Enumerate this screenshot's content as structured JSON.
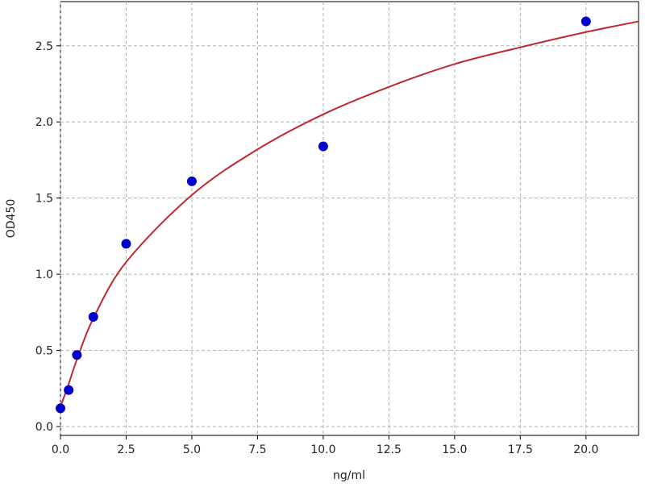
{
  "chart_data": {
    "type": "scatter",
    "title": "",
    "xlabel": "ng/ml",
    "ylabel": "OD450",
    "xlim": [
      0,
      22
    ],
    "ylim": [
      -0.058,
      2.79
    ],
    "xticks": [
      "0.0",
      "2.5",
      "5.0",
      "7.5",
      "10.0",
      "12.5",
      "15.0",
      "17.5",
      "20.0"
    ],
    "xtick_values": [
      0,
      2.5,
      5,
      7.5,
      10,
      12.5,
      15,
      17.5,
      20
    ],
    "yticks": [
      "0.0",
      "0.5",
      "1.0",
      "1.5",
      "2.0",
      "2.5"
    ],
    "ytick_values": [
      0,
      0.5,
      1,
      1.5,
      2,
      2.5
    ],
    "grid": true,
    "points": {
      "color": "#0000cc",
      "x": [
        0,
        0.3125,
        0.625,
        1.25,
        2.5,
        5,
        10,
        20
      ],
      "y": [
        0.12,
        0.24,
        0.47,
        0.72,
        1.2,
        1.61,
        1.84,
        2.66
      ]
    },
    "fit_curve": {
      "color": "#c0282d",
      "x": [
        0,
        0.3125,
        0.625,
        1.25,
        2.5,
        5,
        7.5,
        10,
        12.5,
        15,
        17.5,
        20,
        22
      ],
      "y": [
        0.13,
        0.28,
        0.44,
        0.71,
        1.08,
        1.52,
        1.82,
        2.05,
        2.23,
        2.38,
        2.49,
        2.59,
        2.66
      ]
    }
  }
}
